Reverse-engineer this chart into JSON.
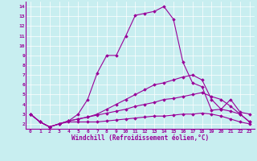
{
  "xlabel": "Windchill (Refroidissement éolien,°C)",
  "background_color": "#c8eef0",
  "line_color": "#990099",
  "xlim": [
    -0.5,
    23.5
  ],
  "ylim": [
    1.5,
    14.5
  ],
  "xticks": [
    0,
    1,
    2,
    3,
    4,
    5,
    6,
    7,
    8,
    9,
    10,
    11,
    12,
    13,
    14,
    15,
    16,
    17,
    18,
    19,
    20,
    21,
    22,
    23
  ],
  "yticks": [
    2,
    3,
    4,
    5,
    6,
    7,
    8,
    9,
    10,
    11,
    12,
    13,
    14
  ],
  "series": [
    [
      3.0,
      2.2,
      1.7,
      2.0,
      2.3,
      3.0,
      4.5,
      7.2,
      9.0,
      9.0,
      11.0,
      13.1,
      13.3,
      13.5,
      14.0,
      12.7,
      8.3,
      6.2,
      5.8,
      3.4,
      3.5,
      4.5,
      3.2,
      3.0
    ],
    [
      3.0,
      2.2,
      1.7,
      2.0,
      2.3,
      2.5,
      2.7,
      3.0,
      3.5,
      4.0,
      4.5,
      5.0,
      5.5,
      6.0,
      6.2,
      6.5,
      6.8,
      7.0,
      6.5,
      4.5,
      3.5,
      3.3,
      3.0,
      2.2
    ],
    [
      3.0,
      2.2,
      1.7,
      2.0,
      2.3,
      2.5,
      2.7,
      2.9,
      3.1,
      3.3,
      3.5,
      3.8,
      4.0,
      4.2,
      4.5,
      4.6,
      4.8,
      5.0,
      5.2,
      4.8,
      4.5,
      3.8,
      3.0,
      2.2
    ],
    [
      3.0,
      2.2,
      1.7,
      2.0,
      2.2,
      2.2,
      2.2,
      2.2,
      2.3,
      2.4,
      2.5,
      2.6,
      2.7,
      2.8,
      2.8,
      2.9,
      3.0,
      3.0,
      3.1,
      3.0,
      2.8,
      2.5,
      2.2,
      2.0
    ]
  ]
}
